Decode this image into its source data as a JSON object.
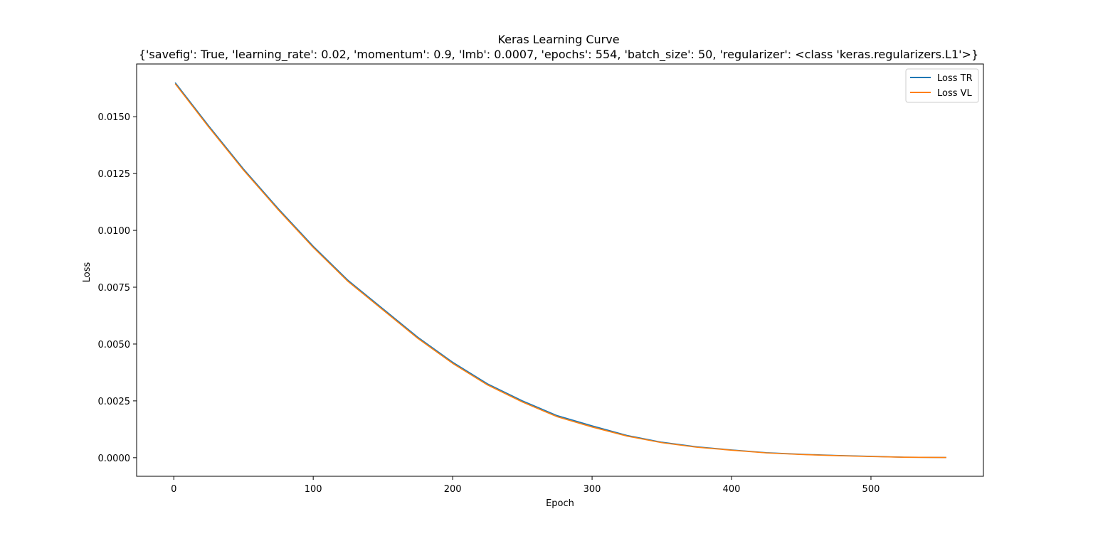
{
  "chart_data": {
    "type": "line",
    "title": "Keras Learning Curve",
    "subtitle": "{'savefig': True, 'learning_rate': 0.02, 'momentum': 0.9, 'lmb': 0.0007, 'epochs': 554, 'batch_size': 50, 'regularizer': <class 'keras.regularizers.L1'>}",
    "xlabel": "Epoch",
    "ylabel": "Loss",
    "xlim": [
      -26.65,
      580.65
    ],
    "ylim": [
      -0.000818,
      0.01732
    ],
    "xticks": [
      0,
      100,
      200,
      300,
      400,
      500
    ],
    "xtick_labels": [
      "0",
      "100",
      "200",
      "300",
      "400",
      "500"
    ],
    "yticks": [
      0.0,
      0.0025,
      0.005,
      0.0075,
      0.01,
      0.0125,
      0.015
    ],
    "ytick_labels": [
      "0.0000",
      "0.0025",
      "0.0050",
      "0.0075",
      "0.0100",
      "0.0125",
      "0.0150"
    ],
    "grid": false,
    "legend_position": "top-right",
    "x": [
      1,
      25,
      50,
      75,
      100,
      125,
      150,
      175,
      200,
      225,
      250,
      275,
      300,
      325,
      350,
      375,
      400,
      425,
      450,
      475,
      500,
      525,
      554
    ],
    "series": [
      {
        "name": "Loss TR",
        "color": "#1f77b4",
        "values": [
          0.0165,
          0.0146,
          0.0127,
          0.01095,
          0.0093,
          0.0078,
          0.00655,
          0.0053,
          0.0042,
          0.00325,
          0.0025,
          0.00185,
          0.0014,
          0.00098,
          0.00068,
          0.00048,
          0.00034,
          0.00022,
          0.00015,
          0.0001,
          6e-05,
          2e-05,
          1e-05
        ]
      },
      {
        "name": "Loss VL",
        "color": "#ff7f0e",
        "values": [
          0.01645,
          0.01455,
          0.01265,
          0.0109,
          0.00925,
          0.00775,
          0.0065,
          0.00525,
          0.00415,
          0.0032,
          0.00245,
          0.0018,
          0.00135,
          0.00095,
          0.00066,
          0.00046,
          0.00033,
          0.00021,
          0.00014,
          9e-05,
          5e-05,
          2e-05,
          1e-05
        ]
      }
    ]
  }
}
